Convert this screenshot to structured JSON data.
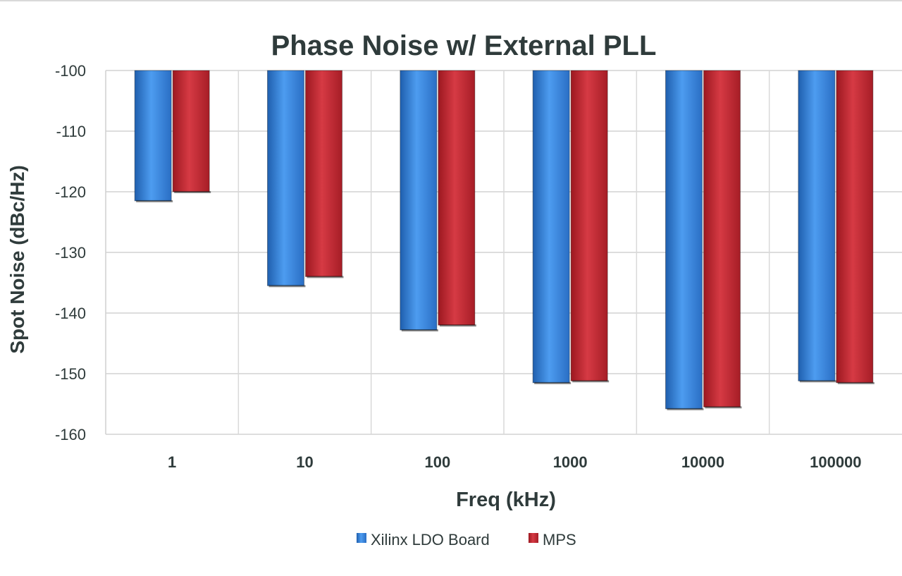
{
  "chart_data": {
    "type": "bar",
    "title": "Phase Noise w/ External PLL",
    "xlabel": "Freq (kHz)",
    "ylabel": "Spot Noise (dBc/Hz)",
    "categories": [
      "1",
      "10",
      "100",
      "1000",
      "10000",
      "100000"
    ],
    "ylim": [
      -160,
      -100
    ],
    "yticks": [
      -100,
      -110,
      -120,
      -130,
      -140,
      -150,
      -160
    ],
    "grid": true,
    "legend_position": "bottom",
    "series": [
      {
        "name": "Xilinx LDO Board",
        "color": "#3d86d9",
        "values": [
          -121.5,
          -135.5,
          -142.8,
          -151.5,
          -155.8,
          -151.2
        ]
      },
      {
        "name": "MPS",
        "color": "#c8242f",
        "values": [
          -120,
          -134,
          -142,
          -151.2,
          -155.5,
          -151.5
        ]
      }
    ]
  }
}
